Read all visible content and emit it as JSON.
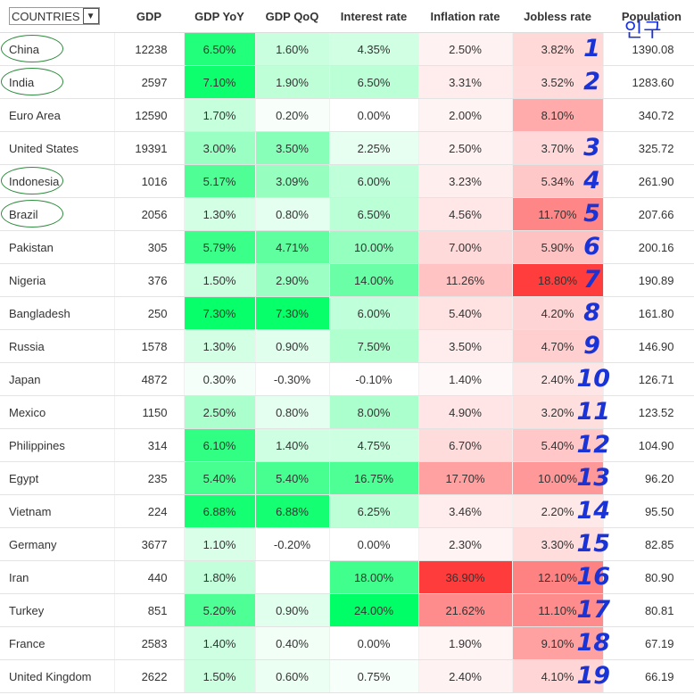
{
  "header": {
    "filter_label": "COUNTRIES",
    "columns": [
      "GDP",
      "GDP YoY",
      "GDP QoQ",
      "Interest rate",
      "Inflation rate",
      "Jobless rate",
      "Population"
    ],
    "annotation": "인구"
  },
  "rows": [
    {
      "country": "China",
      "gdp": "12238",
      "gdp_yoy": "6.50%",
      "gdp_qoq": "1.60%",
      "interest": "4.35%",
      "inflation": "2.50%",
      "jobless": "3.82%",
      "population": "1390.08",
      "rank": "1",
      "circled": true
    },
    {
      "country": "India",
      "gdp": "2597",
      "gdp_yoy": "7.10%",
      "gdp_qoq": "1.90%",
      "interest": "6.50%",
      "inflation": "3.31%",
      "jobless": "3.52%",
      "population": "1283.60",
      "rank": "2",
      "circled": true
    },
    {
      "country": "Euro Area",
      "gdp": "12590",
      "gdp_yoy": "1.70%",
      "gdp_qoq": "0.20%",
      "interest": "0.00%",
      "inflation": "2.00%",
      "jobless": "8.10%",
      "population": "340.72",
      "rank": "",
      "circled": false
    },
    {
      "country": "United States",
      "gdp": "19391",
      "gdp_yoy": "3.00%",
      "gdp_qoq": "3.50%",
      "interest": "2.25%",
      "inflation": "2.50%",
      "jobless": "3.70%",
      "population": "325.72",
      "rank": "3",
      "circled": false
    },
    {
      "country": "Indonesia",
      "gdp": "1016",
      "gdp_yoy": "5.17%",
      "gdp_qoq": "3.09%",
      "interest": "6.00%",
      "inflation": "3.23%",
      "jobless": "5.34%",
      "population": "261.90",
      "rank": "4",
      "circled": true
    },
    {
      "country": "Brazil",
      "gdp": "2056",
      "gdp_yoy": "1.30%",
      "gdp_qoq": "0.80%",
      "interest": "6.50%",
      "inflation": "4.56%",
      "jobless": "11.70%",
      "population": "207.66",
      "rank": "5",
      "circled": true
    },
    {
      "country": "Pakistan",
      "gdp": "305",
      "gdp_yoy": "5.79%",
      "gdp_qoq": "4.71%",
      "interest": "10.00%",
      "inflation": "7.00%",
      "jobless": "5.90%",
      "population": "200.16",
      "rank": "6",
      "circled": false
    },
    {
      "country": "Nigeria",
      "gdp": "376",
      "gdp_yoy": "1.50%",
      "gdp_qoq": "2.90%",
      "interest": "14.00%",
      "inflation": "11.26%",
      "jobless": "18.80%",
      "population": "190.89",
      "rank": "7",
      "circled": false
    },
    {
      "country": "Bangladesh",
      "gdp": "250",
      "gdp_yoy": "7.30%",
      "gdp_qoq": "7.30%",
      "interest": "6.00%",
      "inflation": "5.40%",
      "jobless": "4.20%",
      "population": "161.80",
      "rank": "8",
      "circled": false
    },
    {
      "country": "Russia",
      "gdp": "1578",
      "gdp_yoy": "1.30%",
      "gdp_qoq": "0.90%",
      "interest": "7.50%",
      "inflation": "3.50%",
      "jobless": "4.70%",
      "population": "146.90",
      "rank": "9",
      "circled": false
    },
    {
      "country": "Japan",
      "gdp": "4872",
      "gdp_yoy": "0.30%",
      "gdp_qoq": "-0.30%",
      "interest": "-0.10%",
      "inflation": "1.40%",
      "jobless": "2.40%",
      "population": "126.71",
      "rank": "10",
      "circled": false
    },
    {
      "country": "Mexico",
      "gdp": "1150",
      "gdp_yoy": "2.50%",
      "gdp_qoq": "0.80%",
      "interest": "8.00%",
      "inflation": "4.90%",
      "jobless": "3.20%",
      "population": "123.52",
      "rank": "11",
      "circled": false
    },
    {
      "country": "Philippines",
      "gdp": "314",
      "gdp_yoy": "6.10%",
      "gdp_qoq": "1.40%",
      "interest": "4.75%",
      "inflation": "6.70%",
      "jobless": "5.40%",
      "population": "104.90",
      "rank": "12",
      "circled": false
    },
    {
      "country": "Egypt",
      "gdp": "235",
      "gdp_yoy": "5.40%",
      "gdp_qoq": "5.40%",
      "interest": "16.75%",
      "inflation": "17.70%",
      "jobless": "10.00%",
      "population": "96.20",
      "rank": "13",
      "circled": false
    },
    {
      "country": "Vietnam",
      "gdp": "224",
      "gdp_yoy": "6.88%",
      "gdp_qoq": "6.88%",
      "interest": "6.25%",
      "inflation": "3.46%",
      "jobless": "2.20%",
      "population": "95.50",
      "rank": "14",
      "circled": false
    },
    {
      "country": "Germany",
      "gdp": "3677",
      "gdp_yoy": "1.10%",
      "gdp_qoq": "-0.20%",
      "interest": "0.00%",
      "inflation": "2.30%",
      "jobless": "3.30%",
      "population": "82.85",
      "rank": "15",
      "circled": false
    },
    {
      "country": "Iran",
      "gdp": "440",
      "gdp_yoy": "1.80%",
      "gdp_qoq": "",
      "interest": "18.00%",
      "inflation": "36.90%",
      "jobless": "12.10%",
      "population": "80.90",
      "rank": "16",
      "circled": false
    },
    {
      "country": "Turkey",
      "gdp": "851",
      "gdp_yoy": "5.20%",
      "gdp_qoq": "0.90%",
      "interest": "24.00%",
      "inflation": "21.62%",
      "jobless": "11.10%",
      "population": "80.81",
      "rank": "17",
      "circled": false
    },
    {
      "country": "France",
      "gdp": "2583",
      "gdp_yoy": "1.40%",
      "gdp_qoq": "0.40%",
      "interest": "0.00%",
      "inflation": "1.90%",
      "jobless": "9.10%",
      "population": "67.19",
      "rank": "18",
      "circled": false
    },
    {
      "country": "United Kingdom",
      "gdp": "2622",
      "gdp_yoy": "1.50%",
      "gdp_qoq": "0.60%",
      "interest": "0.75%",
      "inflation": "2.40%",
      "jobless": "4.10%",
      "population": "66.19",
      "rank": "19",
      "circled": false
    }
  ],
  "colors": {
    "green_max": "#00ff66",
    "red_max": "#ff3b3b",
    "annotation_blue": "#1a33d6",
    "circle_green": "#2f8c3e"
  }
}
